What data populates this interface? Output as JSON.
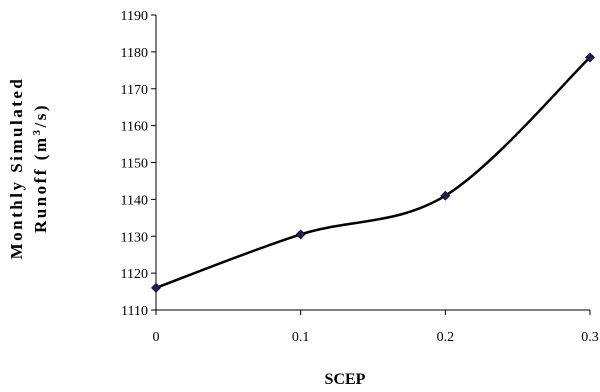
{
  "chart_data": {
    "type": "line",
    "title": "",
    "xlabel": "SCEP",
    "ylabel_line1": "Monthly Simulated",
    "ylabel_line2_main": "Runoff (m",
    "ylabel_line2_sup": "3",
    "ylabel_line2_end": "/s)",
    "x": [
      0,
      0.1,
      0.2,
      0.3
    ],
    "x_tick_labels": [
      "0",
      "0.1",
      "0.2",
      "0.3"
    ],
    "xlim": [
      0,
      0.3
    ],
    "ylim": [
      1110,
      1190
    ],
    "y_ticks": [
      1110,
      1120,
      1130,
      1140,
      1150,
      1160,
      1170,
      1180,
      1190
    ],
    "y_tick_labels": [
      "1110",
      "1120",
      "1130",
      "1140",
      "1150",
      "1160",
      "1170",
      "1180",
      "1190"
    ],
    "series": [
      {
        "values": [
          1116,
          1130.5,
          1141,
          1178.5
        ]
      }
    ],
    "grid": false,
    "line_color": "#000000",
    "marker_color": "#1c1f5e",
    "marker": "diamond"
  }
}
